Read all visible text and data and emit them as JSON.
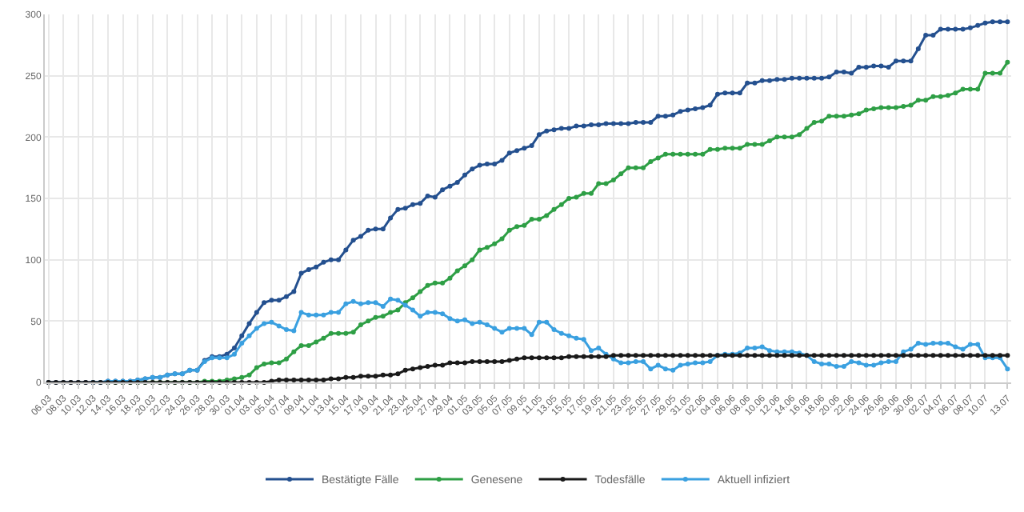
{
  "chart_data": {
    "type": "line",
    "categories": [
      "06.03",
      null,
      "08.03",
      null,
      "10.03",
      null,
      "12.03",
      null,
      "14.03",
      null,
      "16.03",
      null,
      "18.03",
      null,
      "20.03",
      null,
      "22.03",
      null,
      "24.03",
      null,
      "26.03",
      null,
      "28.03",
      null,
      "30.03",
      null,
      "01.04",
      null,
      "03.04",
      null,
      "05.04",
      null,
      "07.04",
      null,
      "09.04",
      null,
      "11.04",
      null,
      "13.04",
      null,
      "15.04",
      null,
      "17.04",
      null,
      "19.04",
      null,
      "21.04",
      null,
      "23.04",
      null,
      "25.04",
      null,
      "27.04",
      null,
      "29.04",
      null,
      "01.05",
      null,
      "03.05",
      null,
      "05.05",
      null,
      "07.05",
      null,
      "09.05",
      null,
      "11.05",
      null,
      "13.05",
      null,
      "15.05",
      null,
      "17.05",
      null,
      "19.05",
      null,
      "21.05",
      null,
      "23.05",
      null,
      "25.05",
      null,
      "27.05",
      null,
      "29.05",
      null,
      "31.05",
      null,
      "02.06",
      null,
      "04.06",
      null,
      "06.06",
      null,
      "08.06",
      null,
      "10.06",
      null,
      "12.06",
      null,
      "14.06",
      null,
      "16.06",
      null,
      "18.06",
      null,
      "20.06",
      null,
      "22.06",
      null,
      "24.06",
      null,
      "26.06",
      null,
      "28.06",
      null,
      "30.06",
      null,
      "02.07",
      null,
      "04.07",
      null,
      "06.07",
      null,
      "08.07",
      null,
      "10.07",
      null,
      null,
      "13.07"
    ],
    "series": [
      {
        "name": "Bestätigte Fälle",
        "color": "#24508f",
        "values": [
          0,
          0,
          0,
          0,
          0,
          0,
          0,
          0,
          1,
          1,
          1,
          1,
          2,
          3,
          4,
          4,
          6,
          7,
          7,
          10,
          10,
          18,
          21,
          21,
          23,
          28,
          38,
          48,
          57,
          65,
          67,
          67,
          70,
          74,
          89,
          92,
          94,
          98,
          100,
          100,
          108,
          116,
          119,
          124,
          125,
          125,
          134,
          141,
          142,
          145,
          146,
          152,
          151,
          157,
          160,
          163,
          169,
          174,
          177,
          178,
          178,
          181,
          187,
          189,
          191,
          193,
          202,
          205,
          206,
          207,
          207,
          209,
          209,
          210,
          210,
          211,
          211,
          211,
          211,
          212,
          212,
          212,
          217,
          217,
          218,
          221,
          222,
          223,
          224,
          226,
          235,
          236,
          236,
          236,
          244,
          244,
          246,
          246,
          247,
          247,
          248,
          248,
          248,
          248,
          248,
          249,
          253,
          253,
          252,
          257,
          257,
          258,
          258,
          257,
          262,
          262,
          262,
          272,
          283,
          283,
          288,
          288,
          288,
          288,
          289,
          291,
          293,
          294,
          294,
          294
        ]
      },
      {
        "name": "Genesene",
        "color": "#2e9f45",
        "values": [
          null,
          null,
          null,
          null,
          null,
          null,
          null,
          null,
          0,
          0,
          0,
          0,
          0,
          0,
          0,
          0,
          0,
          0,
          0,
          0,
          0,
          1,
          1,
          1,
          2,
          3,
          4,
          6,
          12,
          15,
          16,
          16,
          19,
          25,
          30,
          30,
          33,
          36,
          40,
          40,
          40,
          41,
          47,
          50,
          53,
          54,
          57,
          59,
          65,
          69,
          74,
          79,
          81,
          81,
          85,
          91,
          95,
          100,
          108,
          110,
          113,
          117,
          124,
          127,
          128,
          133,
          133,
          136,
          141,
          145,
          150,
          151,
          154,
          154,
          162,
          162,
          165,
          170,
          175,
          175,
          175,
          180,
          183,
          186,
          186,
          186,
          186,
          186,
          186,
          190,
          190,
          191,
          191,
          191,
          194,
          194,
          194,
          197,
          200,
          200,
          200,
          202,
          207,
          212,
          213,
          217,
          217,
          217,
          218,
          219,
          222,
          223,
          224,
          224,
          224,
          225,
          226,
          230,
          230,
          233,
          233,
          234,
          236,
          239,
          239,
          239,
          252,
          252,
          252,
          261
        ]
      },
      {
        "name": "Todesfälle",
        "color": "#1a1a1a",
        "values": [
          0,
          0,
          0,
          0,
          0,
          0,
          0,
          0,
          0,
          0,
          0,
          0,
          0,
          0,
          0,
          0,
          0,
          0,
          0,
          0,
          0,
          0,
          0,
          0,
          0,
          0,
          0,
          0,
          0,
          0,
          1,
          2,
          2,
          2,
          2,
          2,
          2,
          2,
          3,
          3,
          4,
          4,
          5,
          5,
          5,
          6,
          6,
          7,
          10,
          11,
          12,
          13,
          14,
          14,
          16,
          16,
          16,
          17,
          17,
          17,
          17,
          17,
          18,
          19,
          20,
          20,
          20,
          20,
          20,
          20,
          21,
          21,
          21,
          21,
          21,
          21,
          22,
          22,
          22,
          22,
          22,
          22,
          22,
          22,
          22,
          22,
          22,
          22,
          22,
          22,
          22,
          22,
          22,
          22,
          22,
          22,
          22,
          22,
          22,
          22,
          22,
          22,
          22,
          22,
          22,
          22,
          22,
          22,
          22,
          22,
          22,
          22,
          22,
          22,
          22,
          22,
          22,
          22,
          22,
          22,
          22,
          22,
          22,
          22,
          22,
          22,
          22,
          22,
          22,
          22
        ]
      },
      {
        "name": "Aktuell infiziert",
        "color": "#3aa0e0",
        "values": [
          null,
          null,
          null,
          null,
          null,
          null,
          0,
          0,
          1,
          1,
          1,
          1,
          2,
          3,
          4,
          4,
          6,
          7,
          7,
          10,
          10,
          17,
          20,
          20,
          20,
          23,
          32,
          38,
          44,
          48,
          49,
          46,
          43,
          42,
          57,
          55,
          55,
          55,
          57,
          57,
          64,
          66,
          64,
          65,
          65,
          62,
          68,
          67,
          63,
          59,
          54,
          57,
          57,
          56,
          52,
          50,
          51,
          48,
          49,
          47,
          44,
          41,
          44,
          44,
          44,
          39,
          49,
          49,
          43,
          40,
          38,
          36,
          35,
          26,
          28,
          23,
          19,
          16,
          16,
          17,
          17,
          11,
          14,
          11,
          10,
          14,
          15,
          16,
          16,
          17,
          22,
          23,
          23,
          24,
          28,
          28,
          29,
          26,
          25,
          25,
          25,
          24,
          22,
          17,
          15,
          15,
          13,
          13,
          17,
          16,
          14,
          14,
          16,
          17,
          17,
          25,
          27,
          32,
          31,
          32,
          32,
          32,
          29,
          27,
          31,
          31,
          20,
          20,
          20,
          11
        ]
      }
    ],
    "ylim": [
      0,
      300
    ],
    "yticks": [
      0,
      50,
      100,
      150,
      200,
      250,
      300
    ],
    "grid": true,
    "legend": "bottom",
    "marker": "circle",
    "line_style": "solid"
  }
}
